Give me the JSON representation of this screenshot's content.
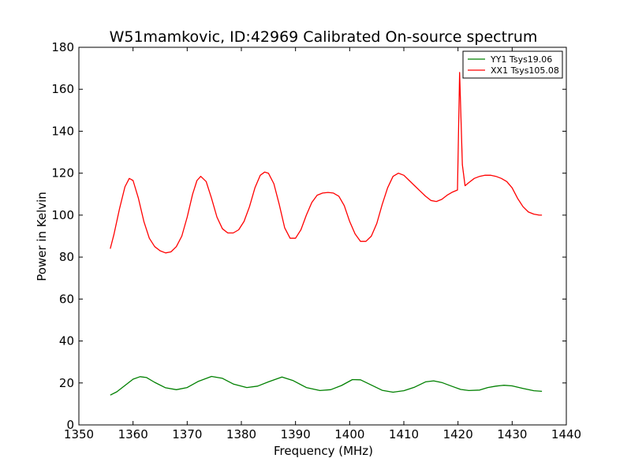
{
  "chart_data": {
    "type": "line",
    "title": "W51mamkovic, ID:42969 Calibrated On-source spectrum",
    "xlabel": "Frequency (MHz)",
    "ylabel": "Power in Kelvin",
    "xlim": [
      1350,
      1440
    ],
    "ylim": [
      0,
      180
    ],
    "xticks": [
      1350,
      1360,
      1370,
      1380,
      1390,
      1400,
      1410,
      1420,
      1430,
      1440
    ],
    "yticks": [
      0,
      20,
      40,
      60,
      80,
      100,
      120,
      140,
      160,
      180
    ],
    "grid": false,
    "legend_position": "top-right",
    "series": [
      {
        "name": "YY1 Tsys19.06",
        "color": "#008000",
        "x": [
          1355.8,
          1357.0,
          1358.5,
          1360.0,
          1361.3,
          1362.5,
          1364.0,
          1366.0,
          1368.0,
          1370.0,
          1372.0,
          1374.5,
          1376.5,
          1378.5,
          1381.0,
          1383.0,
          1385.0,
          1387.5,
          1389.5,
          1392.0,
          1394.5,
          1396.5,
          1398.5,
          1400.5,
          1402.0,
          1404.0,
          1406.0,
          1408.0,
          1410.0,
          1412.0,
          1414.0,
          1415.5,
          1417.0,
          1419.0,
          1420.5,
          1422.0,
          1424.0,
          1425.5,
          1427.0,
          1428.5,
          1430.0,
          1432.0,
          1434.0,
          1435.5
        ],
        "y": [
          14.2,
          15.8,
          18.8,
          21.8,
          23.0,
          22.6,
          20.3,
          17.7,
          16.8,
          17.8,
          20.7,
          23.1,
          22.2,
          19.5,
          17.8,
          18.5,
          20.5,
          22.8,
          21.2,
          17.8,
          16.4,
          16.8,
          18.8,
          21.6,
          21.5,
          19.0,
          16.5,
          15.6,
          16.3,
          18.0,
          20.5,
          21.0,
          20.2,
          18.3,
          16.9,
          16.4,
          16.6,
          17.8,
          18.5,
          18.9,
          18.6,
          17.4,
          16.3,
          16.0
        ]
      },
      {
        "name": "XX1 Tsys105.08",
        "color": "#ff0000",
        "x": [
          1355.8,
          1356.5,
          1357.5,
          1358.5,
          1359.3,
          1360.0,
          1361.0,
          1362.0,
          1363.0,
          1364.0,
          1365.0,
          1366.0,
          1367.0,
          1368.0,
          1369.0,
          1370.0,
          1371.0,
          1371.8,
          1372.5,
          1373.5,
          1374.5,
          1375.5,
          1376.5,
          1377.5,
          1378.5,
          1379.5,
          1380.5,
          1381.5,
          1382.5,
          1383.5,
          1384.3,
          1385.0,
          1386.0,
          1387.0,
          1388.0,
          1389.0,
          1390.0,
          1391.0,
          1392.0,
          1393.0,
          1394.0,
          1395.0,
          1396.0,
          1397.0,
          1398.0,
          1399.0,
          1400.0,
          1401.0,
          1402.0,
          1403.0,
          1404.0,
          1405.0,
          1406.0,
          1407.0,
          1408.0,
          1409.0,
          1410.0,
          1411.0,
          1412.0,
          1413.0,
          1414.0,
          1415.0,
          1416.0,
          1417.0,
          1418.0,
          1419.0,
          1419.9,
          1420.3,
          1420.8,
          1421.3,
          1422.0,
          1423.0,
          1424.0,
          1425.0,
          1426.0,
          1427.0,
          1428.0,
          1429.0,
          1430.0,
          1431.0,
          1432.0,
          1433.0,
          1434.0,
          1435.0,
          1435.5
        ],
        "y": [
          84.0,
          91.0,
          103.0,
          113.5,
          117.5,
          116.5,
          108.0,
          97.0,
          89.0,
          85.0,
          83.0,
          82.0,
          82.5,
          85.0,
          90.0,
          99.0,
          110.0,
          116.5,
          118.5,
          116.0,
          108.0,
          99.0,
          93.5,
          91.5,
          91.5,
          93.0,
          97.0,
          104.0,
          113.0,
          119.0,
          120.5,
          120.0,
          115.0,
          105.0,
          94.0,
          89.0,
          89.0,
          93.0,
          100.0,
          106.0,
          109.5,
          110.5,
          110.8,
          110.5,
          109.0,
          104.5,
          97.0,
          91.0,
          87.5,
          87.5,
          90.0,
          96.0,
          105.0,
          113.0,
          118.5,
          120.0,
          119.0,
          116.5,
          114.0,
          111.5,
          109.0,
          107.0,
          106.5,
          107.5,
          109.5,
          111.0,
          112.0,
          168.0,
          124.0,
          114.0,
          115.5,
          117.5,
          118.5,
          119.0,
          119.0,
          118.5,
          117.5,
          116.0,
          113.0,
          108.0,
          104.0,
          101.5,
          100.5,
          100.0,
          100.0
        ]
      }
    ]
  }
}
